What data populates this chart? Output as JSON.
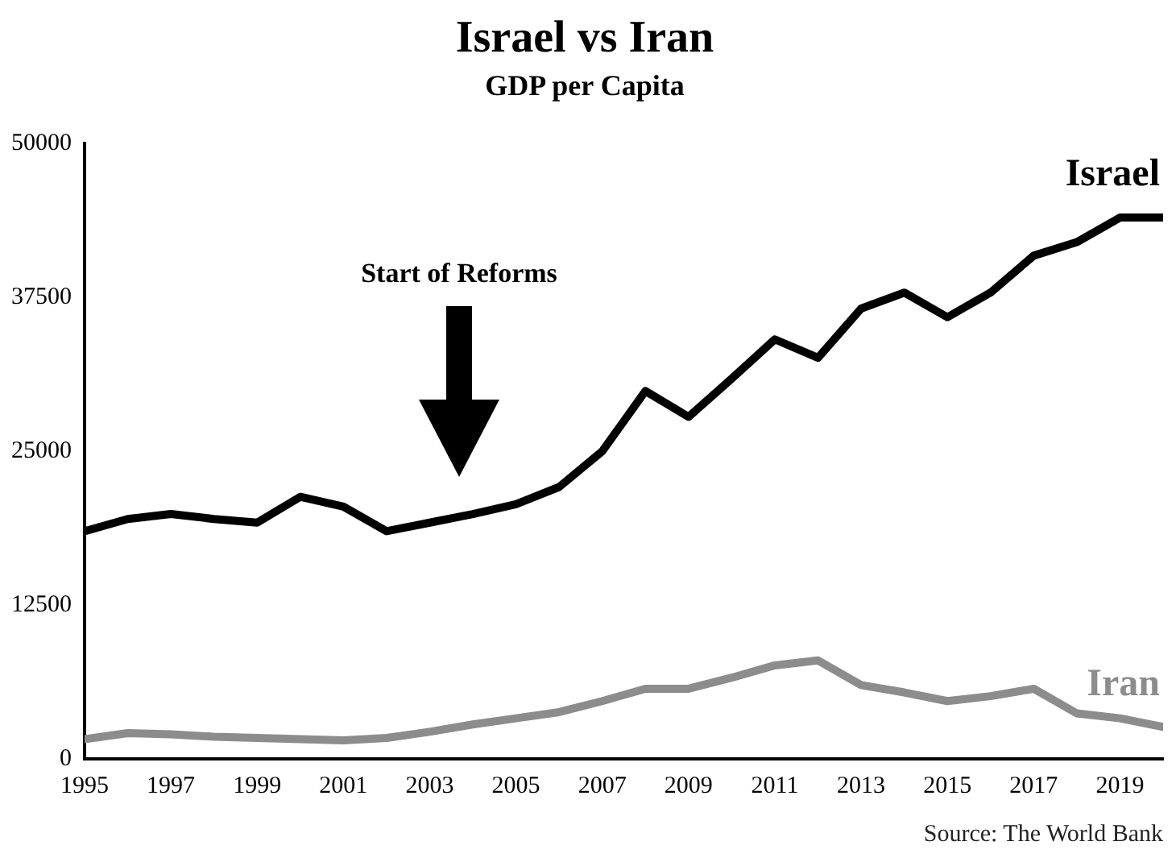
{
  "chart_data": {
    "type": "line",
    "title": "Israel vs Iran",
    "subtitle": "GDP per Capita",
    "x": [
      1995,
      1996,
      1997,
      1998,
      1999,
      2000,
      2001,
      2002,
      2003,
      2004,
      2005,
      2006,
      2007,
      2008,
      2009,
      2010,
      2011,
      2012,
      2013,
      2014,
      2015,
      2016,
      2017,
      2018,
      2019,
      2020
    ],
    "series": [
      {
        "name": "Israel",
        "color": "#000000",
        "values": [
          18500,
          19500,
          19900,
          19500,
          19200,
          21300,
          20500,
          18500,
          19200,
          19900,
          20700,
          22100,
          25000,
          29900,
          27800,
          30900,
          34100,
          32600,
          36600,
          37900,
          35900,
          37900,
          40900,
          42000,
          44000,
          44000
        ]
      },
      {
        "name": "Iran",
        "color": "#8c8c8c",
        "values": [
          1600,
          2100,
          2000,
          1800,
          1700,
          1600,
          1500,
          1700,
          2200,
          2800,
          3300,
          3800,
          4700,
          5700,
          5700,
          6600,
          7600,
          8000,
          6000,
          5400,
          4700,
          5100,
          5700,
          3700,
          3300,
          2600
        ]
      }
    ],
    "xlim": [
      1995,
      2020
    ],
    "xticks": [
      1995,
      1997,
      1999,
      2001,
      2003,
      2005,
      2007,
      2009,
      2011,
      2013,
      2015,
      2017,
      2019
    ],
    "ylim": [
      0,
      50000
    ],
    "yticks": [
      0,
      12500,
      25000,
      37500,
      50000
    ],
    "grid": false,
    "legend": false,
    "marker": "none",
    "line_style": "solid",
    "annotations": [
      "Start of Reforms",
      "Source: The World Bank"
    ]
  }
}
